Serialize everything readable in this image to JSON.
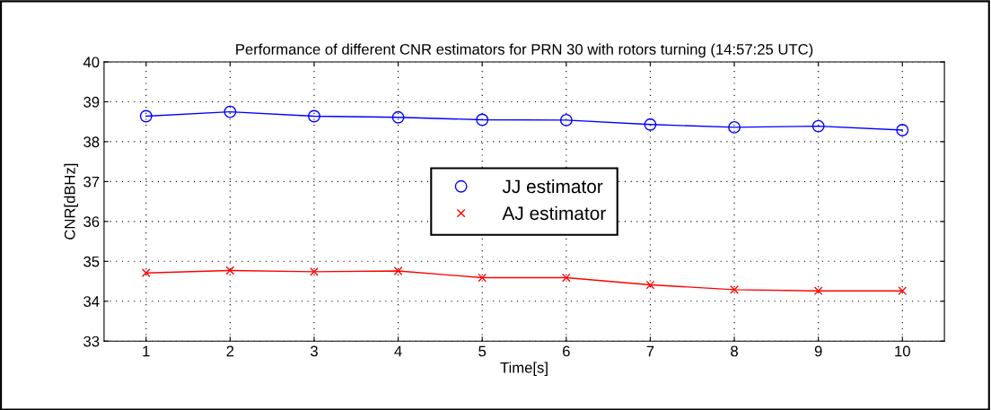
{
  "chart_data": {
    "type": "line",
    "title": "Performance of different CNR estimators for PRN 30 with rotors turning (14:57:25 UTC)",
    "xlabel": "Time[s]",
    "ylabel": "CNR[dBHz]",
    "x": [
      1,
      2,
      3,
      4,
      5,
      6,
      7,
      8,
      9,
      10
    ],
    "series": [
      {
        "name": "JJ estimator",
        "color": "#0000ff",
        "marker": "circle",
        "values": [
          38.64,
          38.75,
          38.64,
          38.61,
          38.55,
          38.54,
          38.43,
          38.36,
          38.39,
          38.29
        ]
      },
      {
        "name": "AJ estimator",
        "color": "#ff0000",
        "marker": "cross",
        "values": [
          34.71,
          34.77,
          34.74,
          34.76,
          34.59,
          34.59,
          34.41,
          34.29,
          34.26,
          34.26
        ]
      }
    ],
    "xlim": [
      0.5,
      10.5
    ],
    "xticks": [
      1,
      2,
      3,
      4,
      5,
      6,
      7,
      8,
      9,
      10
    ],
    "ylim": [
      33,
      40
    ],
    "yticks": [
      33,
      34,
      35,
      36,
      37,
      38,
      39,
      40
    ],
    "grid": true,
    "legend": "center",
    "line_style": "solid"
  }
}
